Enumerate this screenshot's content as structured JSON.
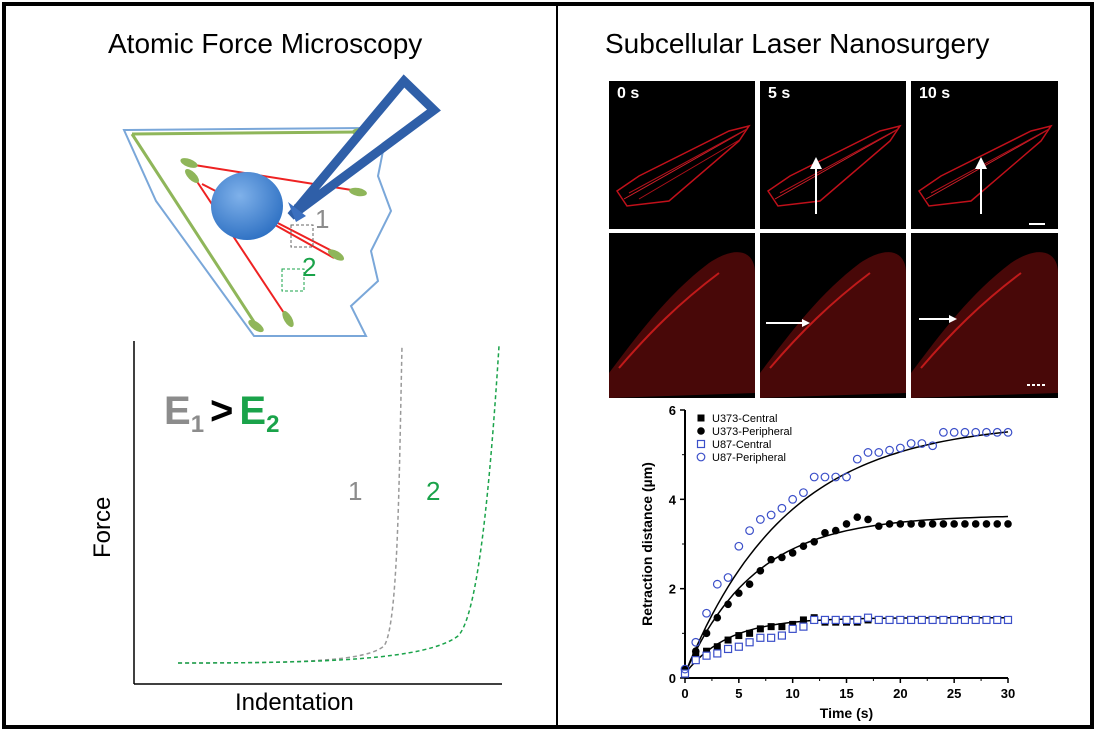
{
  "left_panel": {
    "title": "Atomic Force Microscopy",
    "cell_region_labels": [
      "1",
      "2"
    ],
    "plot": {
      "ylabel": "Force",
      "xlabel": "Indentation",
      "relation": {
        "e1": "E",
        "sub1": "1",
        "gt": ">",
        "e2": "E",
        "sub2": "2"
      },
      "curve_labels": [
        "1",
        "2"
      ]
    }
  },
  "right_panel": {
    "title": "Subcellular Laser Nanosurgery",
    "time_labels": [
      "0 s",
      "5 s",
      "10 s"
    ]
  },
  "colors": {
    "gray": "#8c8c8c",
    "green": "#1aa34a",
    "blue": "#3b78c9",
    "red": "#ff2a2a",
    "cell_outline": "#7aa7d9",
    "fiber_green": "#8fb65a"
  },
  "chart_data": {
    "type": "scatter",
    "title": "",
    "xlabel": "Time (s)",
    "ylabel": "Retraction distance (µm)",
    "xlim": [
      0,
      30
    ],
    "ylim": [
      0,
      6
    ],
    "xticks": [
      "0",
      "5",
      "10",
      "15",
      "20",
      "25",
      "30"
    ],
    "yticks": [
      "0",
      "2",
      "4",
      "6"
    ],
    "legend_placement": "top-left",
    "series": [
      {
        "name": "U373-Central",
        "marker": "filled-square",
        "color": "#000000",
        "x": [
          0,
          1,
          2,
          3,
          4,
          5,
          6,
          7,
          8,
          9,
          10,
          11,
          12,
          13,
          14,
          15,
          16,
          17
        ],
        "y": [
          0.15,
          0.5,
          0.6,
          0.7,
          0.85,
          0.95,
          1.0,
          1.1,
          1.15,
          1.15,
          1.2,
          1.3,
          1.35,
          1.25,
          1.25,
          1.25,
          1.25,
          1.3
        ]
      },
      {
        "name": "U373-Peripheral",
        "marker": "filled-circle",
        "color": "#000000",
        "x": [
          0,
          1,
          2,
          3,
          4,
          5,
          6,
          7,
          8,
          9,
          10,
          11,
          12,
          13,
          14,
          15,
          16,
          17,
          18,
          19,
          20,
          21,
          22,
          23,
          24,
          25,
          26,
          27,
          28,
          29,
          30
        ],
        "y": [
          0.2,
          0.6,
          1.0,
          1.35,
          1.65,
          1.9,
          2.1,
          2.4,
          2.65,
          2.7,
          2.8,
          2.95,
          3.05,
          3.25,
          3.3,
          3.45,
          3.6,
          3.55,
          3.4,
          3.45,
          3.45,
          3.45,
          3.45,
          3.45,
          3.45,
          3.45,
          3.45,
          3.45,
          3.45,
          3.45,
          3.45
        ]
      },
      {
        "name": "U87-Central",
        "marker": "open-square",
        "color": "#3b4fc9",
        "x": [
          0,
          1,
          2,
          3,
          4,
          5,
          6,
          7,
          8,
          9,
          10,
          11,
          12,
          13,
          14,
          15,
          16,
          17,
          18,
          19,
          20,
          21,
          22,
          23,
          24,
          25,
          26,
          27,
          28,
          29,
          30
        ],
        "y": [
          0.1,
          0.4,
          0.5,
          0.55,
          0.65,
          0.7,
          0.8,
          0.9,
          0.9,
          0.95,
          1.1,
          1.15,
          1.3,
          1.3,
          1.3,
          1.3,
          1.3,
          1.35,
          1.3,
          1.3,
          1.3,
          1.3,
          1.3,
          1.3,
          1.3,
          1.3,
          1.3,
          1.3,
          1.3,
          1.3,
          1.3
        ]
      },
      {
        "name": "U87-Peripheral",
        "marker": "open-circle",
        "color": "#3b4fc9",
        "x": [
          0,
          1,
          2,
          3,
          4,
          5,
          6,
          7,
          8,
          9,
          10,
          11,
          12,
          13,
          14,
          15,
          16,
          17,
          18,
          19,
          20,
          21,
          22,
          23,
          24,
          25,
          26,
          27,
          28,
          29,
          30
        ],
        "y": [
          0.2,
          0.8,
          1.45,
          2.1,
          2.25,
          2.95,
          3.3,
          3.55,
          3.65,
          3.8,
          4.0,
          4.15,
          4.5,
          4.5,
          4.5,
          4.5,
          4.9,
          5.05,
          5.05,
          5.1,
          5.15,
          5.25,
          5.25,
          5.2,
          5.5,
          5.5,
          5.5,
          5.5,
          5.5,
          5.5,
          5.5
        ]
      }
    ],
    "fit_curves": [
      {
        "a": 1.35,
        "tau": 4
      },
      {
        "a": 3.65,
        "tau": 6.5
      },
      {
        "a": 5.75,
        "tau": 9.5
      }
    ]
  }
}
